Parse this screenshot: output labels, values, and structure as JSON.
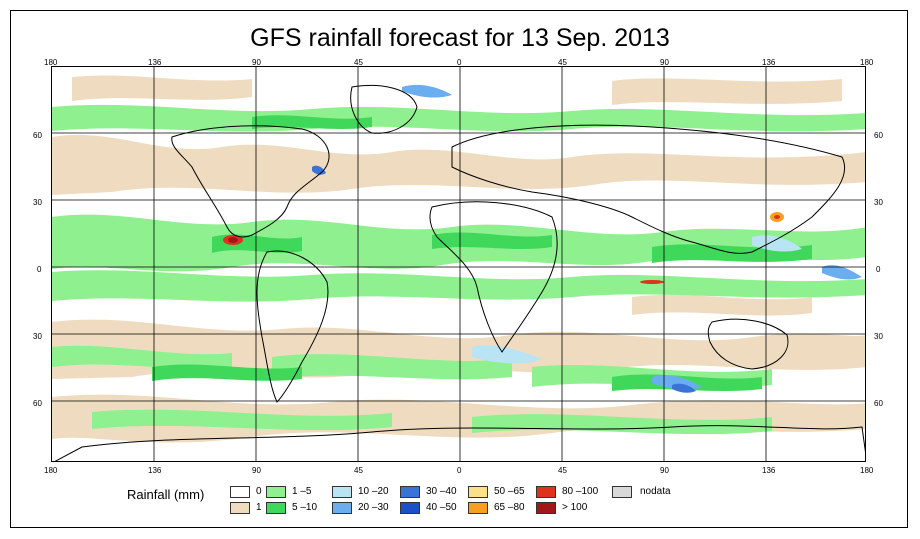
{
  "title": "GFS rainfall forecast for 13 Sep. 2013",
  "lon_ticks": [
    "180",
    "136",
    "90",
    "45",
    "0",
    "45",
    "90",
    "136",
    "180"
  ],
  "lat_ticks": [
    "60",
    "30",
    "0",
    "30",
    "60"
  ],
  "legend": {
    "title": "Rainfall (mm)",
    "items": [
      {
        "label": "0",
        "color": "#ffffff"
      },
      {
        "label": "1",
        "color": "#efdcc0"
      },
      {
        "label": "1 –5",
        "color": "#8ef08e"
      },
      {
        "label": "5 –10",
        "color": "#3fd85a"
      },
      {
        "label": "10 –20",
        "color": "#b8e4f4"
      },
      {
        "label": "20 –30",
        "color": "#6aaef0"
      },
      {
        "label": "30 –40",
        "color": "#3a72d8"
      },
      {
        "label": "40 –50",
        "color": "#1d4fc8"
      },
      {
        "label": "50 –65",
        "color": "#fbe08a"
      },
      {
        "label": "65 –80",
        "color": "#f5a020"
      },
      {
        "label": "80 –100",
        "color": "#e0301e"
      },
      {
        "label": "> 100",
        "color": "#a01818"
      },
      {
        "label": "nodata",
        "color": "#d8d8d8"
      }
    ]
  }
}
